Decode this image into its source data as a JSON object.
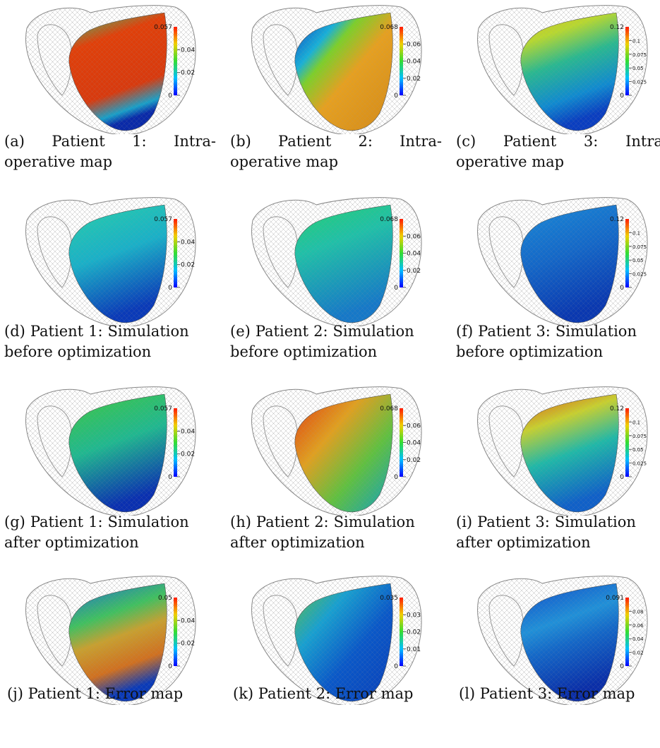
{
  "panels": [
    {
      "id": "a",
      "caption_words": [
        "(a)",
        "Patient",
        "1:",
        "Intra-"
      ],
      "caption_line2": "operative map",
      "colorbar": {
        "max": "0.057",
        "ticks": [
          "0.04",
          "0.02",
          "0"
        ]
      },
      "map": "intra1"
    },
    {
      "id": "b",
      "caption_words": [
        "(b)",
        "Patient",
        "2:",
        "Intra-"
      ],
      "caption_line2": "operative map",
      "colorbar": {
        "max": "0.068",
        "ticks": [
          "0.06",
          "0.04",
          "0.02",
          "0"
        ]
      },
      "map": "intra2"
    },
    {
      "id": "c",
      "caption_words": [
        "(c)",
        "Patient",
        "3:",
        "Intra-"
      ],
      "caption_line2": "operative map",
      "colorbar": {
        "max": "0.12",
        "ticks": [
          "0.1",
          "0.075",
          "0.05",
          "0.025",
          "0"
        ]
      },
      "map": "intra3"
    },
    {
      "id": "d",
      "caption_words": [
        "(d)",
        "Patient",
        "1:",
        "Simulation"
      ],
      "caption_line2": "before optimization",
      "colorbar": {
        "max": "0.057",
        "ticks": [
          "0.04",
          "0.02",
          "0"
        ]
      },
      "map": "cyan"
    },
    {
      "id": "e",
      "caption_words": [
        "(e)",
        "Patient",
        "2:",
        "Simulation"
      ],
      "caption_line2": "before optimization",
      "colorbar": {
        "max": "0.068",
        "ticks": [
          "0.06",
          "0.04",
          "0.02",
          "0"
        ]
      },
      "map": "cyangreen"
    },
    {
      "id": "f",
      "caption_words": [
        "(f)",
        "Patient",
        "3:",
        "Simulation"
      ],
      "caption_line2": "before optimization",
      "colorbar": {
        "max": "0.12",
        "ticks": [
          "0.1",
          "0.075",
          "0.05",
          "0.025",
          "0"
        ]
      },
      "map": "blue"
    },
    {
      "id": "g",
      "caption_words": [
        "(g)",
        "Patient",
        "1:",
        "Simulation"
      ],
      "caption_line2": "after optimization",
      "colorbar": {
        "max": "0.057",
        "ticks": [
          "0.04",
          "0.02",
          "0"
        ]
      },
      "map": "green"
    },
    {
      "id": "h",
      "caption_words": [
        "(h)",
        "Patient",
        "2:",
        "Simulation"
      ],
      "caption_line2": "after optimization",
      "colorbar": {
        "max": "0.068",
        "ticks": [
          "0.06",
          "0.04",
          "0.02",
          "0"
        ]
      },
      "map": "redgreen"
    },
    {
      "id": "i",
      "caption_words": [
        "(i)",
        "Patient",
        "3:",
        "Simulation"
      ],
      "caption_line2": "after optimization",
      "colorbar": {
        "max": "0.12",
        "ticks": [
          "0.1",
          "0.075",
          "0.05",
          "0.025",
          "0"
        ]
      },
      "map": "orangeblue"
    },
    {
      "id": "j",
      "caption_single": "(j) Patient 1: Error map",
      "colorbar": {
        "max": "0.05",
        "ticks": [
          "0.04",
          "0.02",
          "0"
        ]
      },
      "map": "err1"
    },
    {
      "id": "k",
      "caption_single": "(k) Patient 2: Error map",
      "colorbar": {
        "max": "0.035",
        "ticks": [
          "0.03",
          "0.02",
          "0.01",
          "0"
        ]
      },
      "map": "err2"
    },
    {
      "id": "l",
      "caption_single": "(l) Patient 3: Error map",
      "colorbar": {
        "max": "0.091",
        "ticks": [
          "0.08",
          "0.06",
          "0.04",
          "0.02",
          "0"
        ]
      },
      "map": "err3"
    }
  ]
}
